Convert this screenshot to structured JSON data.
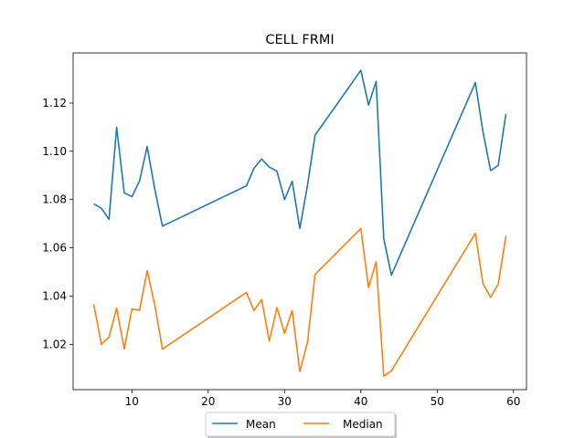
{
  "chart_data": {
    "type": "line",
    "title": "CELL FRMI",
    "xlabel": "",
    "ylabel": "",
    "xlim": [
      2.3,
      61.7
    ],
    "ylim": [
      1.0012,
      1.1408
    ],
    "x_ticks": [
      10,
      20,
      30,
      40,
      50,
      60
    ],
    "y_ticks": [
      1.02,
      1.04,
      1.06,
      1.08,
      1.1,
      1.12
    ],
    "y_tick_labels": [
      "1.02",
      "1.04",
      "1.06",
      "1.08",
      "1.10",
      "1.12"
    ],
    "grid": false,
    "legend_position": "bottom-center",
    "x": [
      5,
      6,
      7,
      8,
      9,
      10,
      11,
      12,
      13,
      14,
      25,
      26,
      27,
      28,
      29,
      30,
      31,
      32,
      33,
      34,
      40,
      41,
      42,
      43,
      44,
      55,
      56,
      57,
      58,
      59
    ],
    "series": [
      {
        "name": "Mean",
        "color": "#1f77b4",
        "values": [
          1.0782,
          1.0764,
          1.0718,
          1.11,
          1.0828,
          1.0812,
          1.0877,
          1.102,
          1.0843,
          1.069,
          1.0857,
          1.093,
          1.0968,
          1.0935,
          1.0918,
          1.08,
          1.0876,
          1.068,
          1.0858,
          1.1067,
          1.1336,
          1.1192,
          1.129,
          1.0638,
          1.0487,
          1.1285,
          1.108,
          1.092,
          1.0942,
          1.1155
        ]
      },
      {
        "name": "Median",
        "color": "#ff7f0e",
        "values": [
          1.0366,
          1.02,
          1.023,
          1.035,
          1.018,
          1.0346,
          1.0341,
          1.0505,
          1.0363,
          1.018,
          1.0415,
          1.034,
          1.0385,
          1.0213,
          1.0352,
          1.0245,
          1.034,
          1.0087,
          1.0207,
          1.049,
          1.068,
          1.0435,
          1.0542,
          1.0068,
          1.009,
          1.066,
          1.045,
          1.0395,
          1.045,
          1.0648
        ]
      }
    ]
  }
}
